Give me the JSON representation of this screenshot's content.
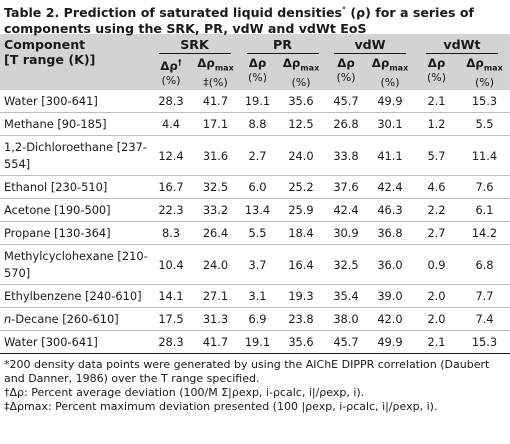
{
  "title_main": "Table 2. Prediction of saturated liquid densities",
  "title_marker": "*",
  "title_rest": " (ρ) for a series of components using the SRK, PR, vdW and vdWt EoS",
  "header": {
    "component": "Component",
    "trange": "[T range (K)]",
    "groups": [
      "SRK",
      "PR",
      "vdW",
      "vdWt"
    ],
    "dp": "Δρ",
    "dp_mark": "†",
    "dpmax": "Δρ",
    "dpmax_sub": "max",
    "dpmax_mark": "‡",
    "unit": "(%)"
  },
  "rows": [
    {
      "name": "Water [300-641]",
      "v": [
        "28.3",
        "41.7",
        "19.1",
        "35.6",
        "45.7",
        "49.9",
        "2.1",
        "15.3"
      ]
    },
    {
      "name": "Methane [90-185]",
      "v": [
        "4.4",
        "17.1",
        "8.8",
        "12.5",
        "26.8",
        "30.1",
        "1.2",
        "5.5"
      ]
    },
    {
      "name": "1,2-Dichloroethane [237-554]",
      "v": [
        "12.4",
        "31.6",
        "2.7",
        "24.0",
        "33.8",
        "41.1",
        "5.7",
        "11.4"
      ]
    },
    {
      "name": "Ethanol [230-510]",
      "v": [
        "16.7",
        "32.5",
        "6.0",
        "25.2",
        "37.6",
        "42.4",
        "4.6",
        "7.6"
      ]
    },
    {
      "name": "Acetone [190-500]",
      "v": [
        "22.3",
        "33.2",
        "13.4",
        "25.9",
        "42.4",
        "46.3",
        "2.2",
        "6.1"
      ]
    },
    {
      "name": "Propane [130-364]",
      "v": [
        "8.3",
        "26.4",
        "5.5",
        "18.4",
        "30.9",
        "36.8",
        "2.7",
        "14.2"
      ]
    },
    {
      "name": "Methylcyclohexane [210-570]",
      "v": [
        "10.4",
        "24.0",
        "3.7",
        "16.4",
        "32.5",
        "36.0",
        "0.9",
        "6.8"
      ]
    },
    {
      "name": "Ethylbenzene [240-610]",
      "v": [
        "14.1",
        "27.1",
        "3.1",
        "19.3",
        "35.4",
        "39.0",
        "2.0",
        "7.7"
      ]
    },
    {
      "name_prefix": "n",
      "name": "-Decane [260-610]",
      "v": [
        "17.5",
        "31.3",
        "6.9",
        "23.8",
        "38.0",
        "42.0",
        "2.0",
        "7.4"
      ]
    },
    {
      "name": "Water [300-641]",
      "v": [
        "28.3",
        "41.7",
        "19.1",
        "35.6",
        "45.7",
        "49.9",
        "2.1",
        "15.3"
      ]
    }
  ],
  "footnotes": {
    "f1": "*200 density data points were generated by using the AIChE DIPPR correlation (Daubert and Danner, 1986) over the T range specified.",
    "f2": "†Δρ: Percent average deviation (100/M Σ|ρexp, i-ρcalc, i|/ρexp, i).",
    "f3": "‡Δρmax: Percent maximum deviation presented (100 |ρexp, i-ρcalc, i|/ρexp, i)."
  }
}
